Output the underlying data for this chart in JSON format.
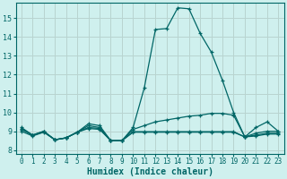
{
  "xlabel": "Humidex (Indice chaleur)",
  "background_color": "#cff0ee",
  "grid_color": "#b8d4d0",
  "line_color": "#006666",
  "xlim": [
    -0.5,
    23.5
  ],
  "ylim": [
    7.8,
    15.8
  ],
  "yticks": [
    8,
    9,
    10,
    11,
    12,
    13,
    14,
    15
  ],
  "xticks": [
    0,
    1,
    2,
    3,
    4,
    5,
    6,
    7,
    8,
    9,
    10,
    11,
    12,
    13,
    14,
    15,
    16,
    17,
    18,
    19,
    20,
    21,
    22,
    23
  ],
  "series": [
    {
      "x": [
        0,
        1,
        2,
        3,
        4,
        5,
        6,
        7,
        8,
        9,
        10,
        11,
        12,
        13,
        14,
        15,
        16,
        17,
        18,
        19,
        20,
        21,
        22,
        23
      ],
      "y": [
        9.2,
        8.8,
        9.0,
        8.55,
        8.65,
        8.95,
        9.4,
        9.3,
        8.5,
        8.5,
        9.2,
        11.3,
        14.4,
        14.45,
        15.55,
        15.5,
        14.2,
        13.2,
        11.7,
        10.0,
        8.7,
        9.2,
        9.5,
        9.0
      ]
    },
    {
      "x": [
        0,
        1,
        2,
        3,
        4,
        5,
        6,
        7,
        8,
        9,
        10,
        11,
        12,
        13,
        14,
        15,
        16,
        17,
        18,
        19,
        20,
        21,
        22,
        23
      ],
      "y": [
        9.1,
        8.8,
        9.0,
        8.55,
        8.65,
        8.95,
        9.3,
        9.2,
        8.5,
        8.5,
        9.1,
        9.3,
        9.5,
        9.6,
        9.7,
        9.8,
        9.85,
        9.95,
        9.95,
        9.85,
        8.7,
        8.9,
        9.0,
        9.0
      ]
    },
    {
      "x": [
        0,
        1,
        2,
        3,
        4,
        5,
        6,
        7,
        8,
        9,
        10,
        11,
        12,
        13,
        14,
        15,
        16,
        17,
        18,
        19,
        20,
        21,
        22,
        23
      ],
      "y": [
        9.0,
        8.75,
        8.95,
        8.55,
        8.65,
        8.95,
        9.15,
        9.1,
        8.5,
        8.5,
        8.95,
        8.95,
        8.95,
        8.95,
        8.95,
        8.95,
        8.95,
        8.95,
        8.95,
        8.95,
        8.7,
        8.75,
        8.85,
        8.85
      ]
    },
    {
      "x": [
        0,
        1,
        2,
        3,
        4,
        5,
        6,
        7,
        8,
        9,
        10,
        11,
        12,
        13,
        14,
        15,
        16,
        17,
        18,
        19,
        20,
        21,
        22,
        23
      ],
      "y": [
        9.15,
        8.78,
        8.97,
        8.55,
        8.65,
        8.95,
        9.2,
        9.15,
        8.5,
        8.5,
        8.98,
        8.98,
        8.98,
        8.98,
        8.98,
        8.98,
        8.98,
        8.98,
        8.98,
        8.98,
        8.7,
        8.8,
        8.9,
        8.9
      ]
    }
  ]
}
